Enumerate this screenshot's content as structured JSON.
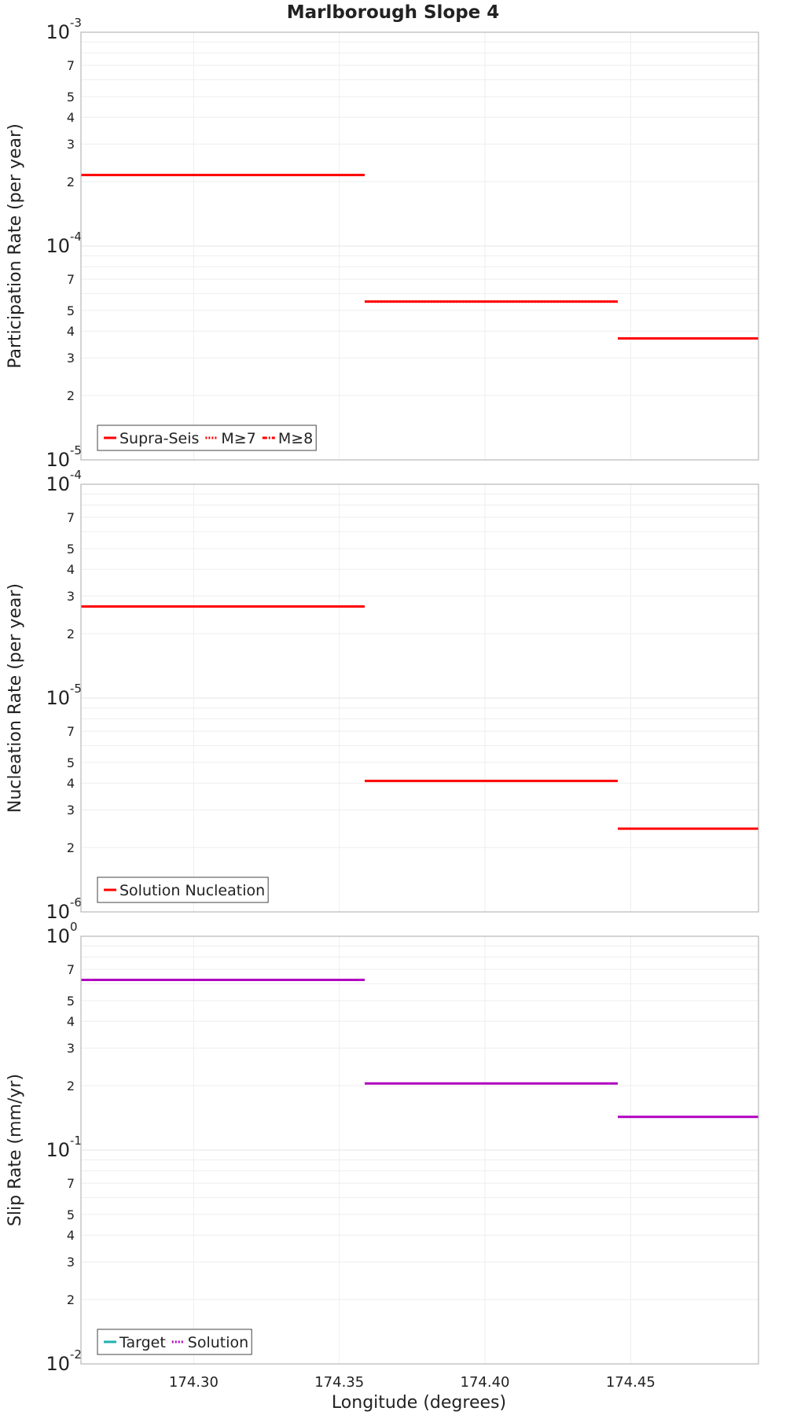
{
  "chart_data": {
    "type": "line",
    "title": "Marlborough Slope 4",
    "xlabel": "Longitude (degrees)",
    "xlim": [
      174.2613,
      174.4939
    ],
    "xticks": [
      "174.30",
      "174.35",
      "174.40",
      "174.45"
    ],
    "xtick_values": [
      174.3,
      174.35,
      174.4,
      174.45
    ],
    "panels": [
      {
        "ylabel": "Participation Rate (per year)",
        "yscale": "log",
        "ylim": [
          1e-05,
          0.001
        ],
        "decade_labels": [
          {
            "base": "10",
            "exp": "-5"
          },
          {
            "base": "10",
            "exp": "-4"
          },
          {
            "base": "10",
            "exp": "-3"
          }
        ],
        "minor_tick_labels": [
          "2",
          "3",
          "4",
          "5",
          "7"
        ],
        "legend": [
          "Supra-Seis",
          "M≥7",
          "M≥8"
        ],
        "series": [
          {
            "name": "Supra-Seis",
            "color": "#ff0000",
            "style": "solid",
            "segments": [
              {
                "x": [
                  174.2613,
                  174.3587
                ],
                "y": 0.000215
              },
              {
                "x": [
                  174.3587,
                  174.4456
                ],
                "y": 5.5e-05
              },
              {
                "x": [
                  174.4456,
                  174.4939
                ],
                "y": 3.7e-05
              }
            ]
          },
          {
            "name": "M≥7",
            "color": "#ff0000",
            "style": "dotted",
            "segments": [
              {
                "x": [
                  174.3587,
                  174.4456
                ],
                "y": 5.5e-05
              },
              {
                "x": [
                  174.4456,
                  174.4939
                ],
                "y": 3.7e-05
              }
            ]
          }
        ]
      },
      {
        "ylabel": "Nucleation Rate (per year)",
        "yscale": "log",
        "ylim": [
          1e-06,
          0.0001
        ],
        "decade_labels": [
          {
            "base": "10",
            "exp": "-6"
          },
          {
            "base": "10",
            "exp": "-5"
          },
          {
            "base": "10",
            "exp": "-4"
          }
        ],
        "minor_tick_labels": [
          "2",
          "3",
          "4",
          "5",
          "7"
        ],
        "legend": [
          "Solution Nucleation"
        ],
        "series": [
          {
            "name": "Solution Nucleation",
            "color": "#ff0000",
            "style": "solid",
            "segments": [
              {
                "x": [
                  174.2613,
                  174.3587
                ],
                "y": 2.68e-05
              },
              {
                "x": [
                  174.3587,
                  174.4456
                ],
                "y": 4.1e-06
              },
              {
                "x": [
                  174.4456,
                  174.4939
                ],
                "y": 2.45e-06
              }
            ]
          }
        ]
      },
      {
        "ylabel": "Slip Rate (mm/yr)",
        "yscale": "log",
        "ylim": [
          0.01,
          1
        ],
        "decade_labels": [
          {
            "base": "10",
            "exp": "-2"
          },
          {
            "base": "10",
            "exp": "-1"
          },
          {
            "base": "10",
            "exp": "0"
          }
        ],
        "minor_tick_labels": [
          "2",
          "3",
          "4",
          "5",
          "7"
        ],
        "legend": [
          "Target",
          "Solution"
        ],
        "series": [
          {
            "name": "Target",
            "color": "#1fb0b0",
            "style": "solid",
            "segments": []
          },
          {
            "name": "Solution",
            "color": "#b000c0",
            "style": "solid",
            "segments": [
              {
                "x": [
                  174.2613,
                  174.3587
                ],
                "y": 0.625
              },
              {
                "x": [
                  174.3587,
                  174.4456
                ],
                "y": 0.205
              },
              {
                "x": [
                  174.4456,
                  174.4939
                ],
                "y": 0.143
              }
            ]
          }
        ]
      }
    ]
  }
}
